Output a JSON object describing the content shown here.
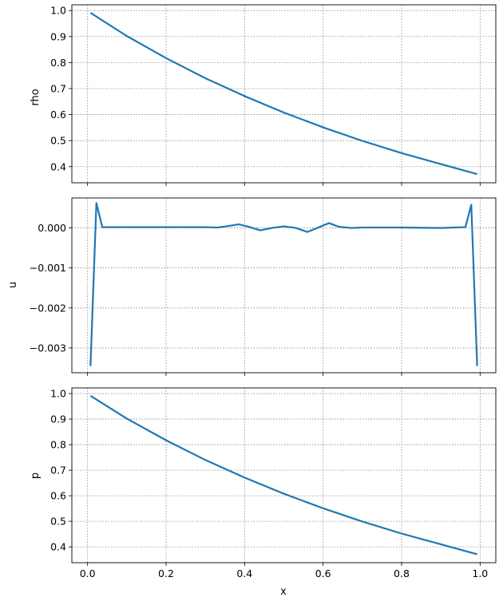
{
  "chart_data": [
    {
      "type": "line",
      "ylabel": "rho",
      "xlabel": "",
      "xlim": [
        -0.04,
        1.04
      ],
      "ylim": [
        0.338,
        1.022
      ],
      "yticks": [
        0.4,
        0.5,
        0.6,
        0.7,
        0.8,
        0.9,
        1.0
      ],
      "ytick_labels": [
        "0.4",
        "0.5",
        "0.6",
        "0.7",
        "0.8",
        "0.9",
        "1.0"
      ],
      "xticks": [
        0.0,
        0.2,
        0.4,
        0.6,
        0.8,
        1.0
      ],
      "xtick_labels_shown": false,
      "grid": true,
      "color": "#1f77b4",
      "series": [
        {
          "x": [
            0.0075,
            0.1,
            0.2,
            0.3,
            0.4,
            0.5,
            0.6,
            0.7,
            0.8,
            0.9,
            0.9925
          ],
          "values": [
            0.991,
            0.902,
            0.817,
            0.74,
            0.671,
            0.608,
            0.551,
            0.499,
            0.452,
            0.41,
            0.371
          ]
        }
      ]
    },
    {
      "type": "line",
      "ylabel": "u",
      "xlabel": "",
      "xlim": [
        -0.04,
        1.04
      ],
      "ylim": [
        -0.00362,
        0.00075
      ],
      "yticks": [
        -0.003,
        -0.002,
        -0.001,
        0.0
      ],
      "ytick_labels": [
        "−0.003",
        "−0.002",
        "−0.001",
        "0.000"
      ],
      "xticks": [
        0.0,
        0.2,
        0.4,
        0.6,
        0.8,
        1.0
      ],
      "xtick_labels_shown": false,
      "grid": true,
      "color": "#1f77b4",
      "series": [
        {
          "x": [
            0.0075,
            0.0225,
            0.0375,
            0.1,
            0.2,
            0.3,
            0.33,
            0.36,
            0.385,
            0.41,
            0.44,
            0.47,
            0.5,
            0.53,
            0.56,
            0.59,
            0.615,
            0.64,
            0.67,
            0.7,
            0.8,
            0.9,
            0.9625,
            0.9775,
            0.9925
          ],
          "values": [
            -0.00345,
            0.00062,
            2e-05,
            2e-05,
            2e-05,
            2e-05,
            1e-05,
            5e-05,
            9e-05,
            3e-05,
            -6e-05,
            0.0,
            4e-05,
            0.0,
            -0.0001,
            2e-05,
            0.00012,
            3e-05,
            0.0,
            1e-05,
            1e-05,
            0.0,
            2e-05,
            0.00058,
            -0.00345
          ]
        }
      ]
    },
    {
      "type": "line",
      "ylabel": "p",
      "xlabel": "x",
      "xlim": [
        -0.04,
        1.04
      ],
      "ylim": [
        0.338,
        1.022
      ],
      "yticks": [
        0.4,
        0.5,
        0.6,
        0.7,
        0.8,
        0.9,
        1.0
      ],
      "ytick_labels": [
        "0.4",
        "0.5",
        "0.6",
        "0.7",
        "0.8",
        "0.9",
        "1.0"
      ],
      "xticks": [
        0.0,
        0.2,
        0.4,
        0.6,
        0.8,
        1.0
      ],
      "xtick_labels": [
        "0.0",
        "0.2",
        "0.4",
        "0.6",
        "0.8",
        "1.0"
      ],
      "xtick_labels_shown": true,
      "grid": true,
      "color": "#1f77b4",
      "series": [
        {
          "x": [
            0.0075,
            0.1,
            0.2,
            0.3,
            0.4,
            0.5,
            0.6,
            0.7,
            0.8,
            0.9,
            0.9925
          ],
          "values": [
            0.991,
            0.902,
            0.817,
            0.74,
            0.671,
            0.608,
            0.551,
            0.499,
            0.452,
            0.41,
            0.371
          ]
        }
      ]
    }
  ]
}
